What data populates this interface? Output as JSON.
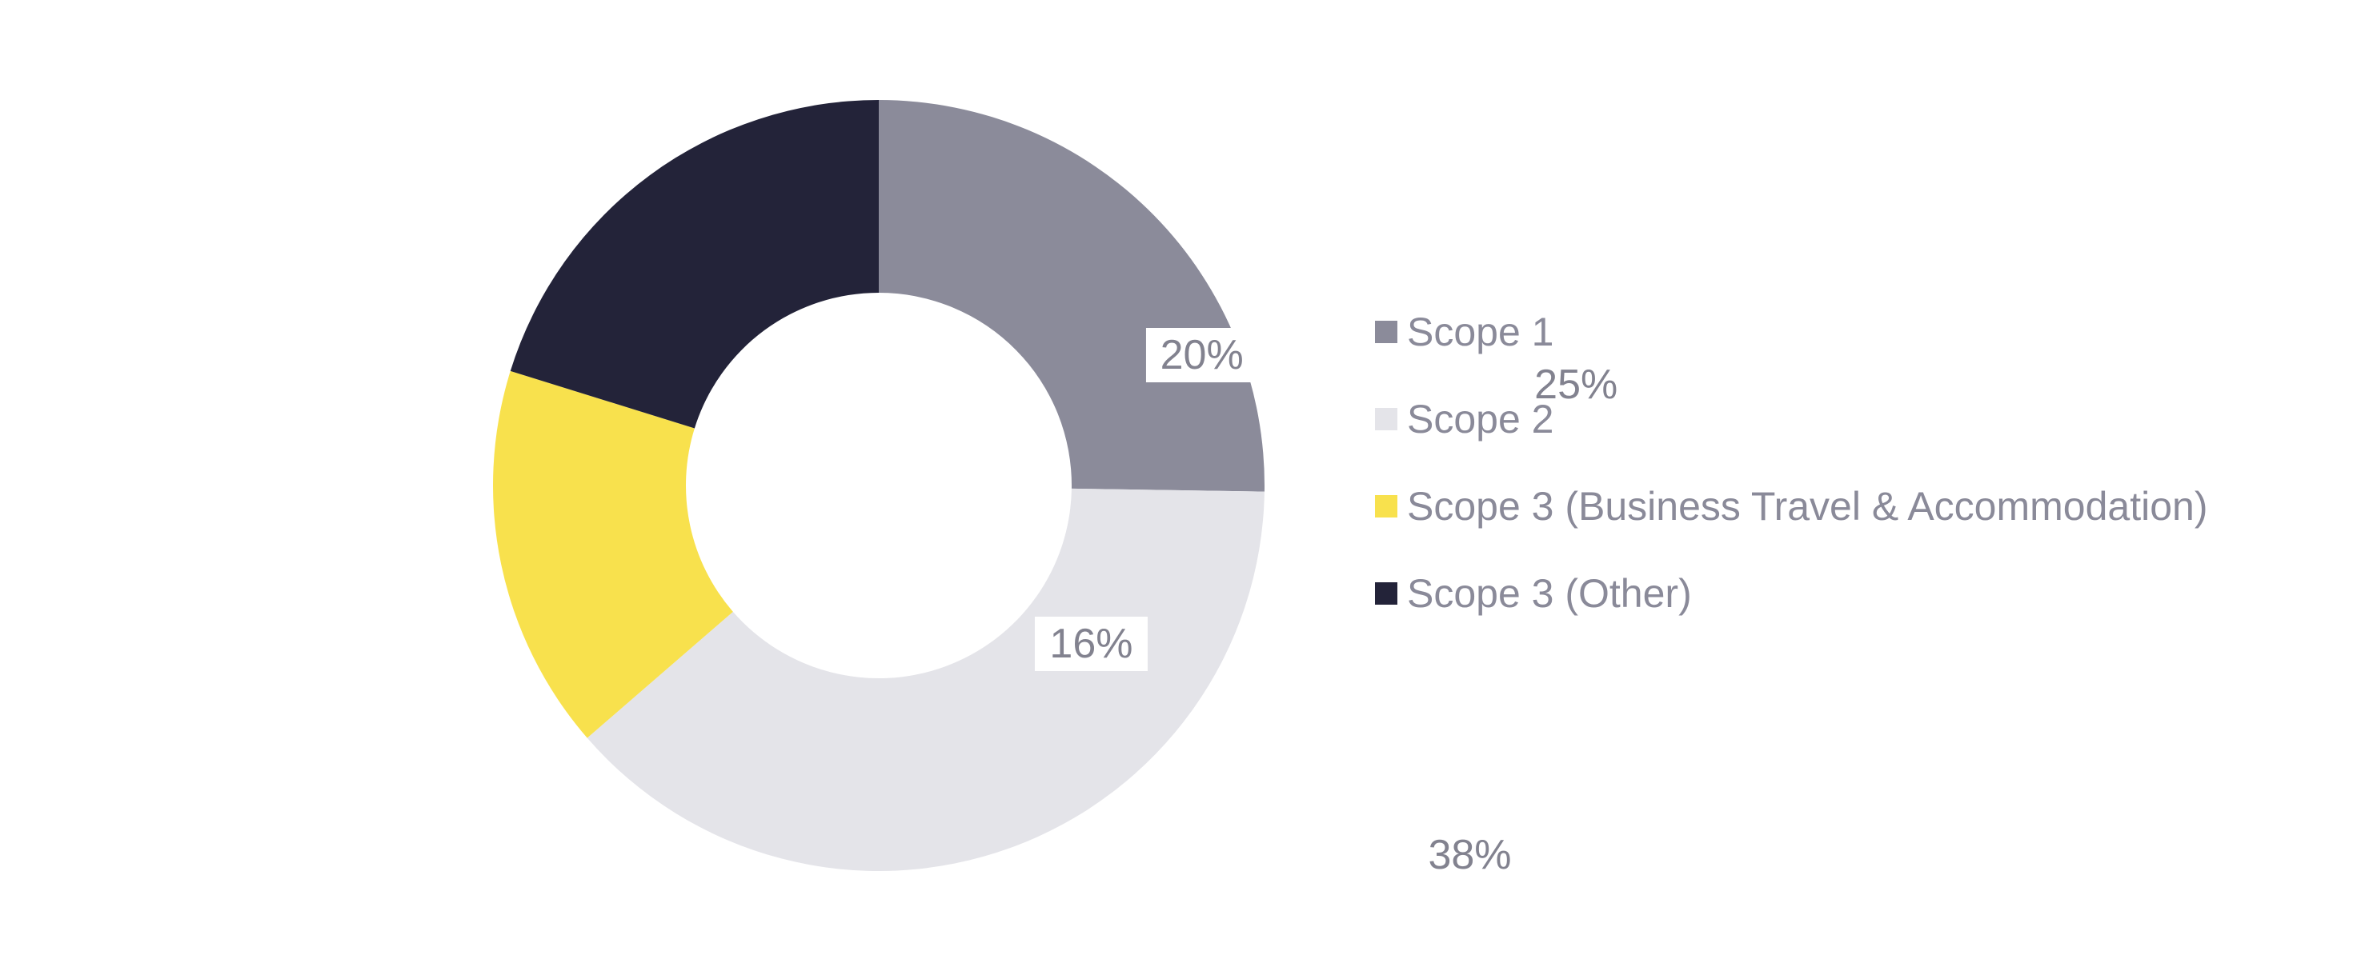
{
  "chart_data": {
    "type": "pie",
    "subtype": "donut",
    "title": "",
    "categories": [
      "Scope 1",
      "Scope 2",
      "Scope 3 (Business Travel & Accommodation)",
      "Scope 3 (Other)"
    ],
    "values": [
      25,
      38,
      16,
      20
    ],
    "data_labels": [
      "25%",
      "38%",
      "16%",
      "20%"
    ],
    "colors": [
      "#8b8b9a",
      "#e4e4e9",
      "#f8e14d",
      "#232339"
    ],
    "legend_position": "right",
    "start_angle_deg": 0,
    "clockwise": true,
    "inner_radius_ratio": 0.5,
    "label_radius_ratio": 0.743,
    "label_bg_color": "#ffffff",
    "label_text_color": "#82828f",
    "legend_text_color": "#8a8a99",
    "background_color": "#ffffff"
  }
}
